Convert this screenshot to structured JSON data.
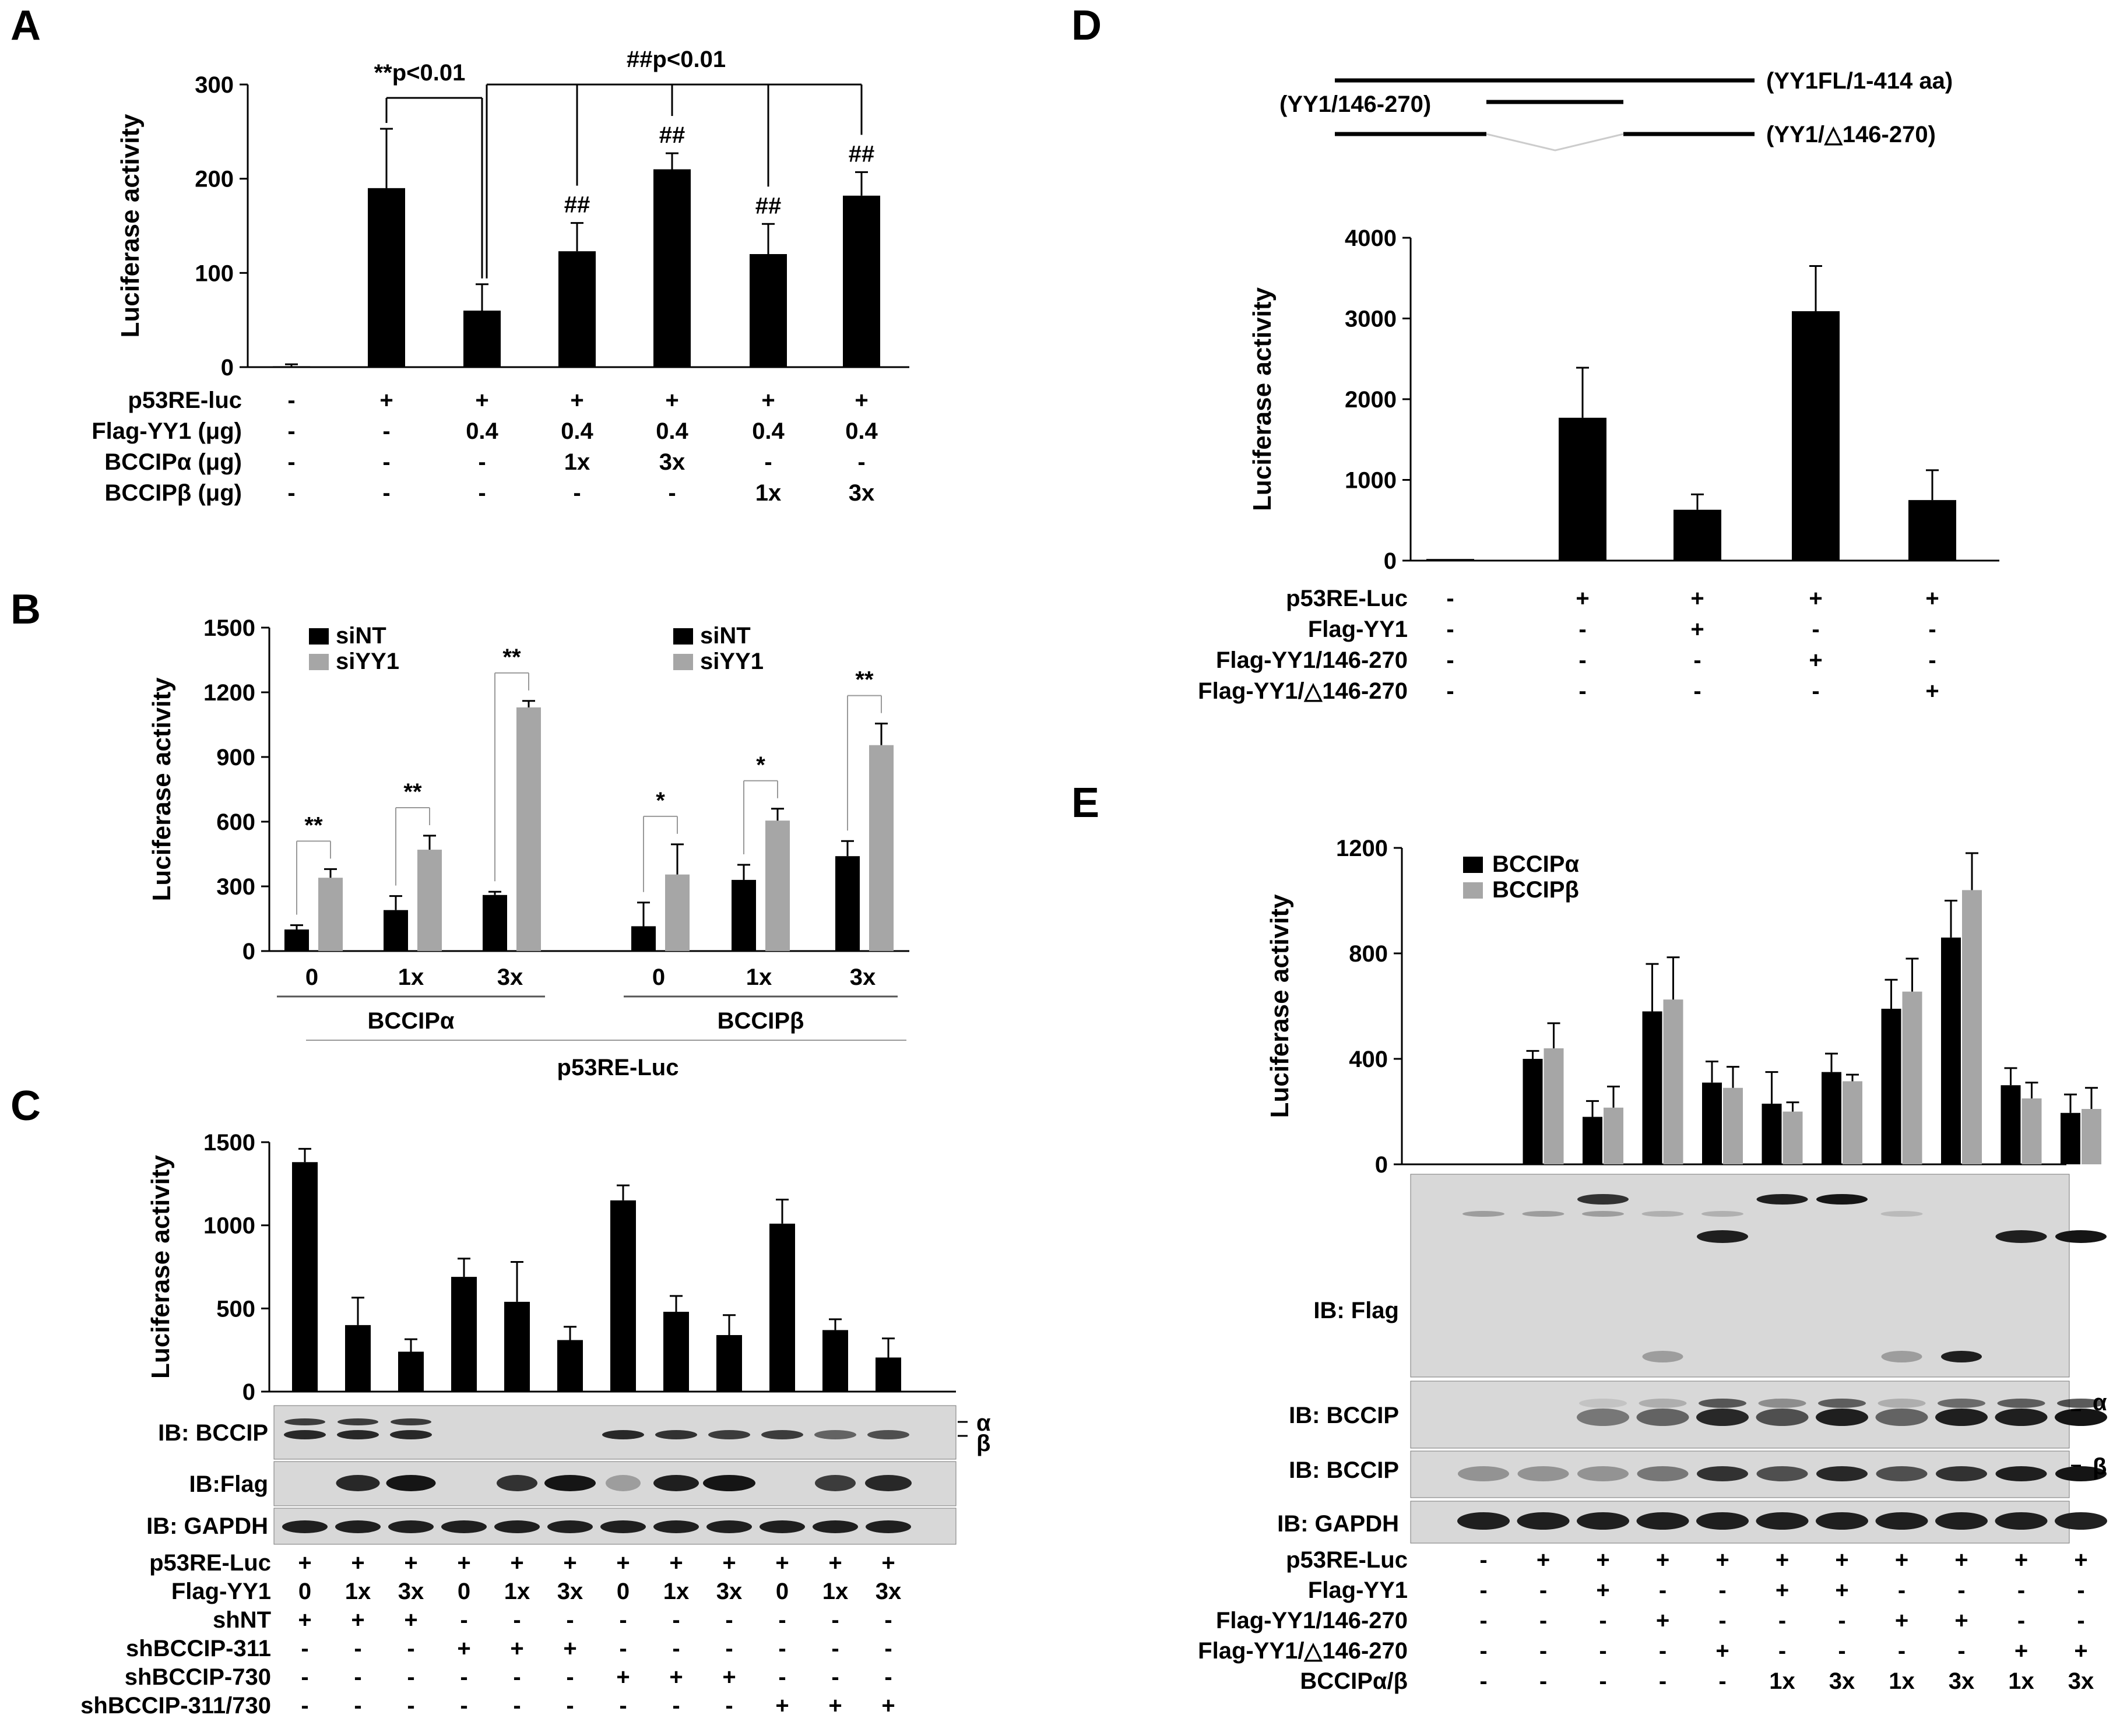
{
  "colors": {
    "black": "#000000",
    "gray": "#a6a6a6",
    "blot": "#d8d8d8",
    "band": "#151515"
  },
  "chart_data": [
    {
      "panel": "A",
      "type": "bar",
      "ylabel": "Luciferase activity",
      "ylim": [
        0,
        300
      ],
      "yticks": [
        "0",
        "100",
        "200",
        "300"
      ],
      "values": [
        1,
        190,
        60,
        123,
        210,
        120,
        182
      ],
      "errors": [
        2,
        63,
        28,
        30,
        17,
        32,
        25
      ],
      "hash_marks": [
        "",
        "",
        "",
        "##",
        "##",
        "##",
        "##"
      ],
      "annotations": {
        "left": "**p<0.01",
        "right": "##p<0.01"
      },
      "rows": [
        {
          "label": "p53RE-luc",
          "cells": [
            "-",
            "+",
            "+",
            "+",
            "+",
            "+",
            "+"
          ]
        },
        {
          "label": "Flag-YY1 (μg)",
          "cells": [
            "-",
            "-",
            "0.4",
            "0.4",
            "0.4",
            "0.4",
            "0.4"
          ]
        },
        {
          "label": "BCCIPα (μg)",
          "cells": [
            "-",
            "-",
            "-",
            "1x",
            "3x",
            "-",
            "-"
          ]
        },
        {
          "label": "BCCIPβ (μg)",
          "cells": [
            "-",
            "-",
            "-",
            "-",
            "-",
            "1x",
            "3x"
          ]
        }
      ]
    },
    {
      "panel": "B",
      "type": "bar",
      "ylabel": "Luciferase activity",
      "ylim": [
        0,
        1500
      ],
      "yticks": [
        "0",
        "300",
        "600",
        "900",
        "1200",
        "1500"
      ],
      "legend": [
        "siNT",
        "siYY1"
      ],
      "groups": [
        {
          "label": "BCCIPα",
          "categories": [
            "0",
            "1x",
            "3x"
          ],
          "siNT": [
            100,
            190,
            260
          ],
          "siNT_err": [
            20,
            65,
            15
          ],
          "siYY1": [
            340,
            470,
            1130
          ],
          "siYY1_err": [
            40,
            65,
            30
          ],
          "sig": [
            "**",
            "**",
            "**"
          ]
        },
        {
          "label": "BCCIPβ",
          "categories": [
            "0",
            "1x",
            "3x"
          ],
          "siNT": [
            115,
            330,
            440
          ],
          "siNT_err": [
            110,
            70,
            70
          ],
          "siYY1": [
            355,
            605,
            955
          ],
          "siYY1_err": [
            140,
            55,
            100
          ],
          "sig": [
            "*",
            "*",
            "**"
          ]
        }
      ],
      "xlabel": "p53RE-Luc"
    },
    {
      "panel": "C",
      "type": "bar",
      "ylabel": "Luciferase activity",
      "ylim": [
        0,
        1500
      ],
      "yticks": [
        "0",
        "500",
        "1000",
        "1500"
      ],
      "values": [
        1380,
        400,
        240,
        690,
        540,
        310,
        1150,
        480,
        340,
        1010,
        370,
        205
      ],
      "errors": [
        80,
        165,
        75,
        110,
        240,
        80,
        90,
        95,
        120,
        145,
        65,
        115
      ],
      "blots": [
        "IB: BCCIP",
        "IB:Flag",
        "IB: GAPDH"
      ],
      "band_labels": [
        "α",
        "β"
      ],
      "rows": [
        {
          "label": "p53RE-Luc",
          "cells": [
            "+",
            "+",
            "+",
            "+",
            "+",
            "+",
            "+",
            "+",
            "+",
            "+",
            "+",
            "+"
          ]
        },
        {
          "label": "Flag-YY1",
          "cells": [
            "0",
            "1x",
            "3x",
            "0",
            "1x",
            "3x",
            "0",
            "1x",
            "3x",
            "0",
            "1x",
            "3x"
          ]
        },
        {
          "label": "shNT",
          "cells": [
            "+",
            "+",
            "+",
            "-",
            "-",
            "-",
            "-",
            "-",
            "-",
            "-",
            "-",
            "-"
          ]
        },
        {
          "label": "shBCCIP-311",
          "cells": [
            "-",
            "-",
            "-",
            "+",
            "+",
            "+",
            "-",
            "-",
            "-",
            "-",
            "-",
            "-"
          ]
        },
        {
          "label": "shBCCIP-730",
          "cells": [
            "-",
            "-",
            "-",
            "-",
            "-",
            "-",
            "+",
            "+",
            "+",
            "-",
            "-",
            "-"
          ]
        },
        {
          "label": "shBCCIP-311/730",
          "cells": [
            "-",
            "-",
            "-",
            "-",
            "-",
            "-",
            "-",
            "-",
            "-",
            "+",
            "+",
            "+"
          ]
        }
      ]
    },
    {
      "panel": "D",
      "type": "bar",
      "ylabel": "Luciferase activity",
      "ylim": [
        0,
        4000
      ],
      "yticks": [
        "0",
        "1000",
        "2000",
        "3000",
        "4000"
      ],
      "constructs": [
        "(YY1FL/1-414 aa)",
        "(YY1/146-270)",
        "(YY1/△146-270)"
      ],
      "values": [
        20,
        1770,
        630,
        3090,
        750
      ],
      "errors": [
        0,
        620,
        190,
        560,
        370
      ],
      "rows": [
        {
          "label": "p53RE-Luc",
          "cells": [
            "-",
            "+",
            "+",
            "+",
            "+"
          ]
        },
        {
          "label": "Flag-YY1",
          "cells": [
            "-",
            "-",
            "+",
            "-",
            "-"
          ]
        },
        {
          "label": "Flag-YY1/146-270",
          "cells": [
            "-",
            "-",
            "-",
            "+",
            "-"
          ]
        },
        {
          "label": "Flag-YY1/△146-270",
          "cells": [
            "-",
            "-",
            "-",
            "-",
            "+"
          ]
        }
      ]
    },
    {
      "panel": "E",
      "type": "bar",
      "ylabel": "Luciferase activity",
      "ylim": [
        0,
        1200
      ],
      "yticks": [
        "0",
        "400",
        "800",
        "1200"
      ],
      "legend": [
        "BCCIPα",
        "BCCIPβ"
      ],
      "series_alpha": [
        0,
        400,
        180,
        580,
        310,
        230,
        350,
        590,
        860,
        300,
        195
      ],
      "series_alpha_err": [
        0,
        30,
        60,
        180,
        80,
        120,
        70,
        110,
        140,
        65,
        70
      ],
      "series_beta": [
        0,
        440,
        215,
        625,
        290,
        200,
        315,
        655,
        1040,
        250,
        210
      ],
      "series_beta_err": [
        0,
        95,
        80,
        160,
        80,
        35,
        25,
        125,
        140,
        60,
        80
      ],
      "blots": [
        "IB: Flag",
        "IB: BCCIP",
        "IB: BCCIP",
        "IB: GAPDH"
      ],
      "band_labels": [
        "α",
        "β"
      ],
      "rows": [
        {
          "label": "p53RE-Luc",
          "cells": [
            "-",
            "+",
            "+",
            "+",
            "+",
            "+",
            "+",
            "+",
            "+",
            "+",
            "+"
          ]
        },
        {
          "label": "Flag-YY1",
          "cells": [
            "-",
            "-",
            "+",
            "-",
            "-",
            "+",
            "+",
            "-",
            "-",
            "-",
            "-"
          ]
        },
        {
          "label": "Flag-YY1/146-270",
          "cells": [
            "-",
            "-",
            "-",
            "+",
            "-",
            "-",
            "-",
            "+",
            "+",
            "-",
            "-"
          ]
        },
        {
          "label": "Flag-YY1/△146-270",
          "cells": [
            "-",
            "-",
            "-",
            "-",
            "+",
            "-",
            "-",
            "-",
            "-",
            "+",
            "+"
          ]
        },
        {
          "label": "BCCIPα/β",
          "cells": [
            "-",
            "-",
            "-",
            "-",
            "-",
            "1x",
            "3x",
            "1x",
            "3x",
            "1x",
            "3x"
          ]
        }
      ]
    }
  ]
}
